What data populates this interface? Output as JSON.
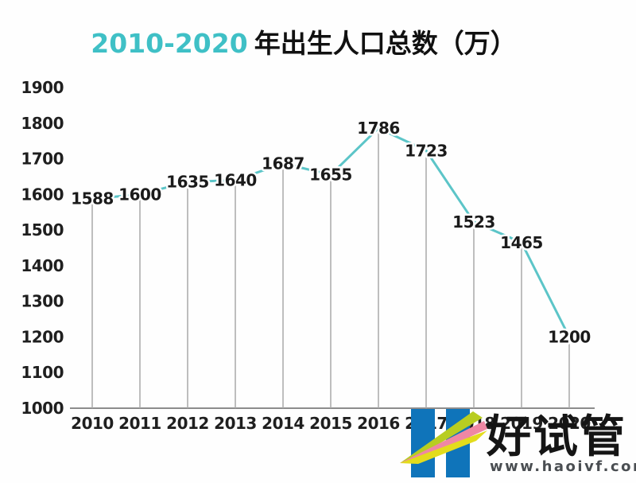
{
  "title": {
    "highlight": "2010-2020",
    "rest": "年出生人口总数（万）"
  },
  "chart_data": {
    "type": "line",
    "title": "2010-2020 年出生人口总数（万）",
    "categories": [
      "2010",
      "2011",
      "2012",
      "2013",
      "2014",
      "2015",
      "2016",
      "2017",
      "2018",
      "2019",
      "2020"
    ],
    "values": [
      1588,
      1600,
      1635,
      1640,
      1687,
      1655,
      1786,
      1723,
      1523,
      1465,
      1200
    ],
    "ylim": [
      1000,
      1900
    ],
    "y_ticks": [
      1000,
      1100,
      1200,
      1300,
      1400,
      1500,
      1600,
      1700,
      1800,
      1900
    ],
    "ylabel": "",
    "xlabel": "",
    "legend": "none",
    "grid": "off",
    "line_color": "#5cc5c8",
    "drop_line_color": "#a8a8a8",
    "axis_color": "#8c8c8c",
    "label_color": "#1b1b1b",
    "title_highlight_color": "#3fc0c6"
  },
  "watermark": {
    "brand": "好试管",
    "url": "www.haoivf.com",
    "bar_color": "#0f74ba",
    "swoosh_green": "#b8cd21",
    "swoosh_pink": "#ef87a4",
    "swoosh_yellow": "#e3dc1c"
  }
}
